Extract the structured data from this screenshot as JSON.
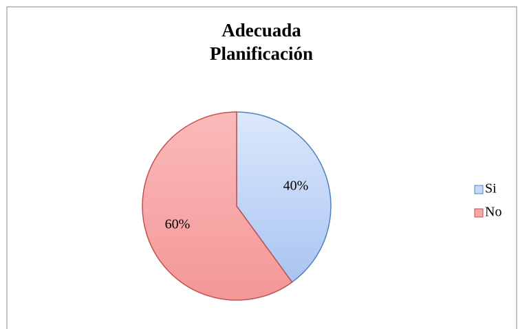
{
  "chart_data": {
    "type": "pie",
    "title": [
      "Adecuada",
      "Planificación"
    ],
    "categories": [
      "Si",
      "No"
    ],
    "values": [
      40,
      60
    ],
    "value_labels": [
      "40%",
      "60%"
    ],
    "colors": [
      "#c6d9f8",
      "#f7a9a8"
    ],
    "edge_colors": [
      "#4f81bd",
      "#c0504d"
    ],
    "legend": "right"
  }
}
